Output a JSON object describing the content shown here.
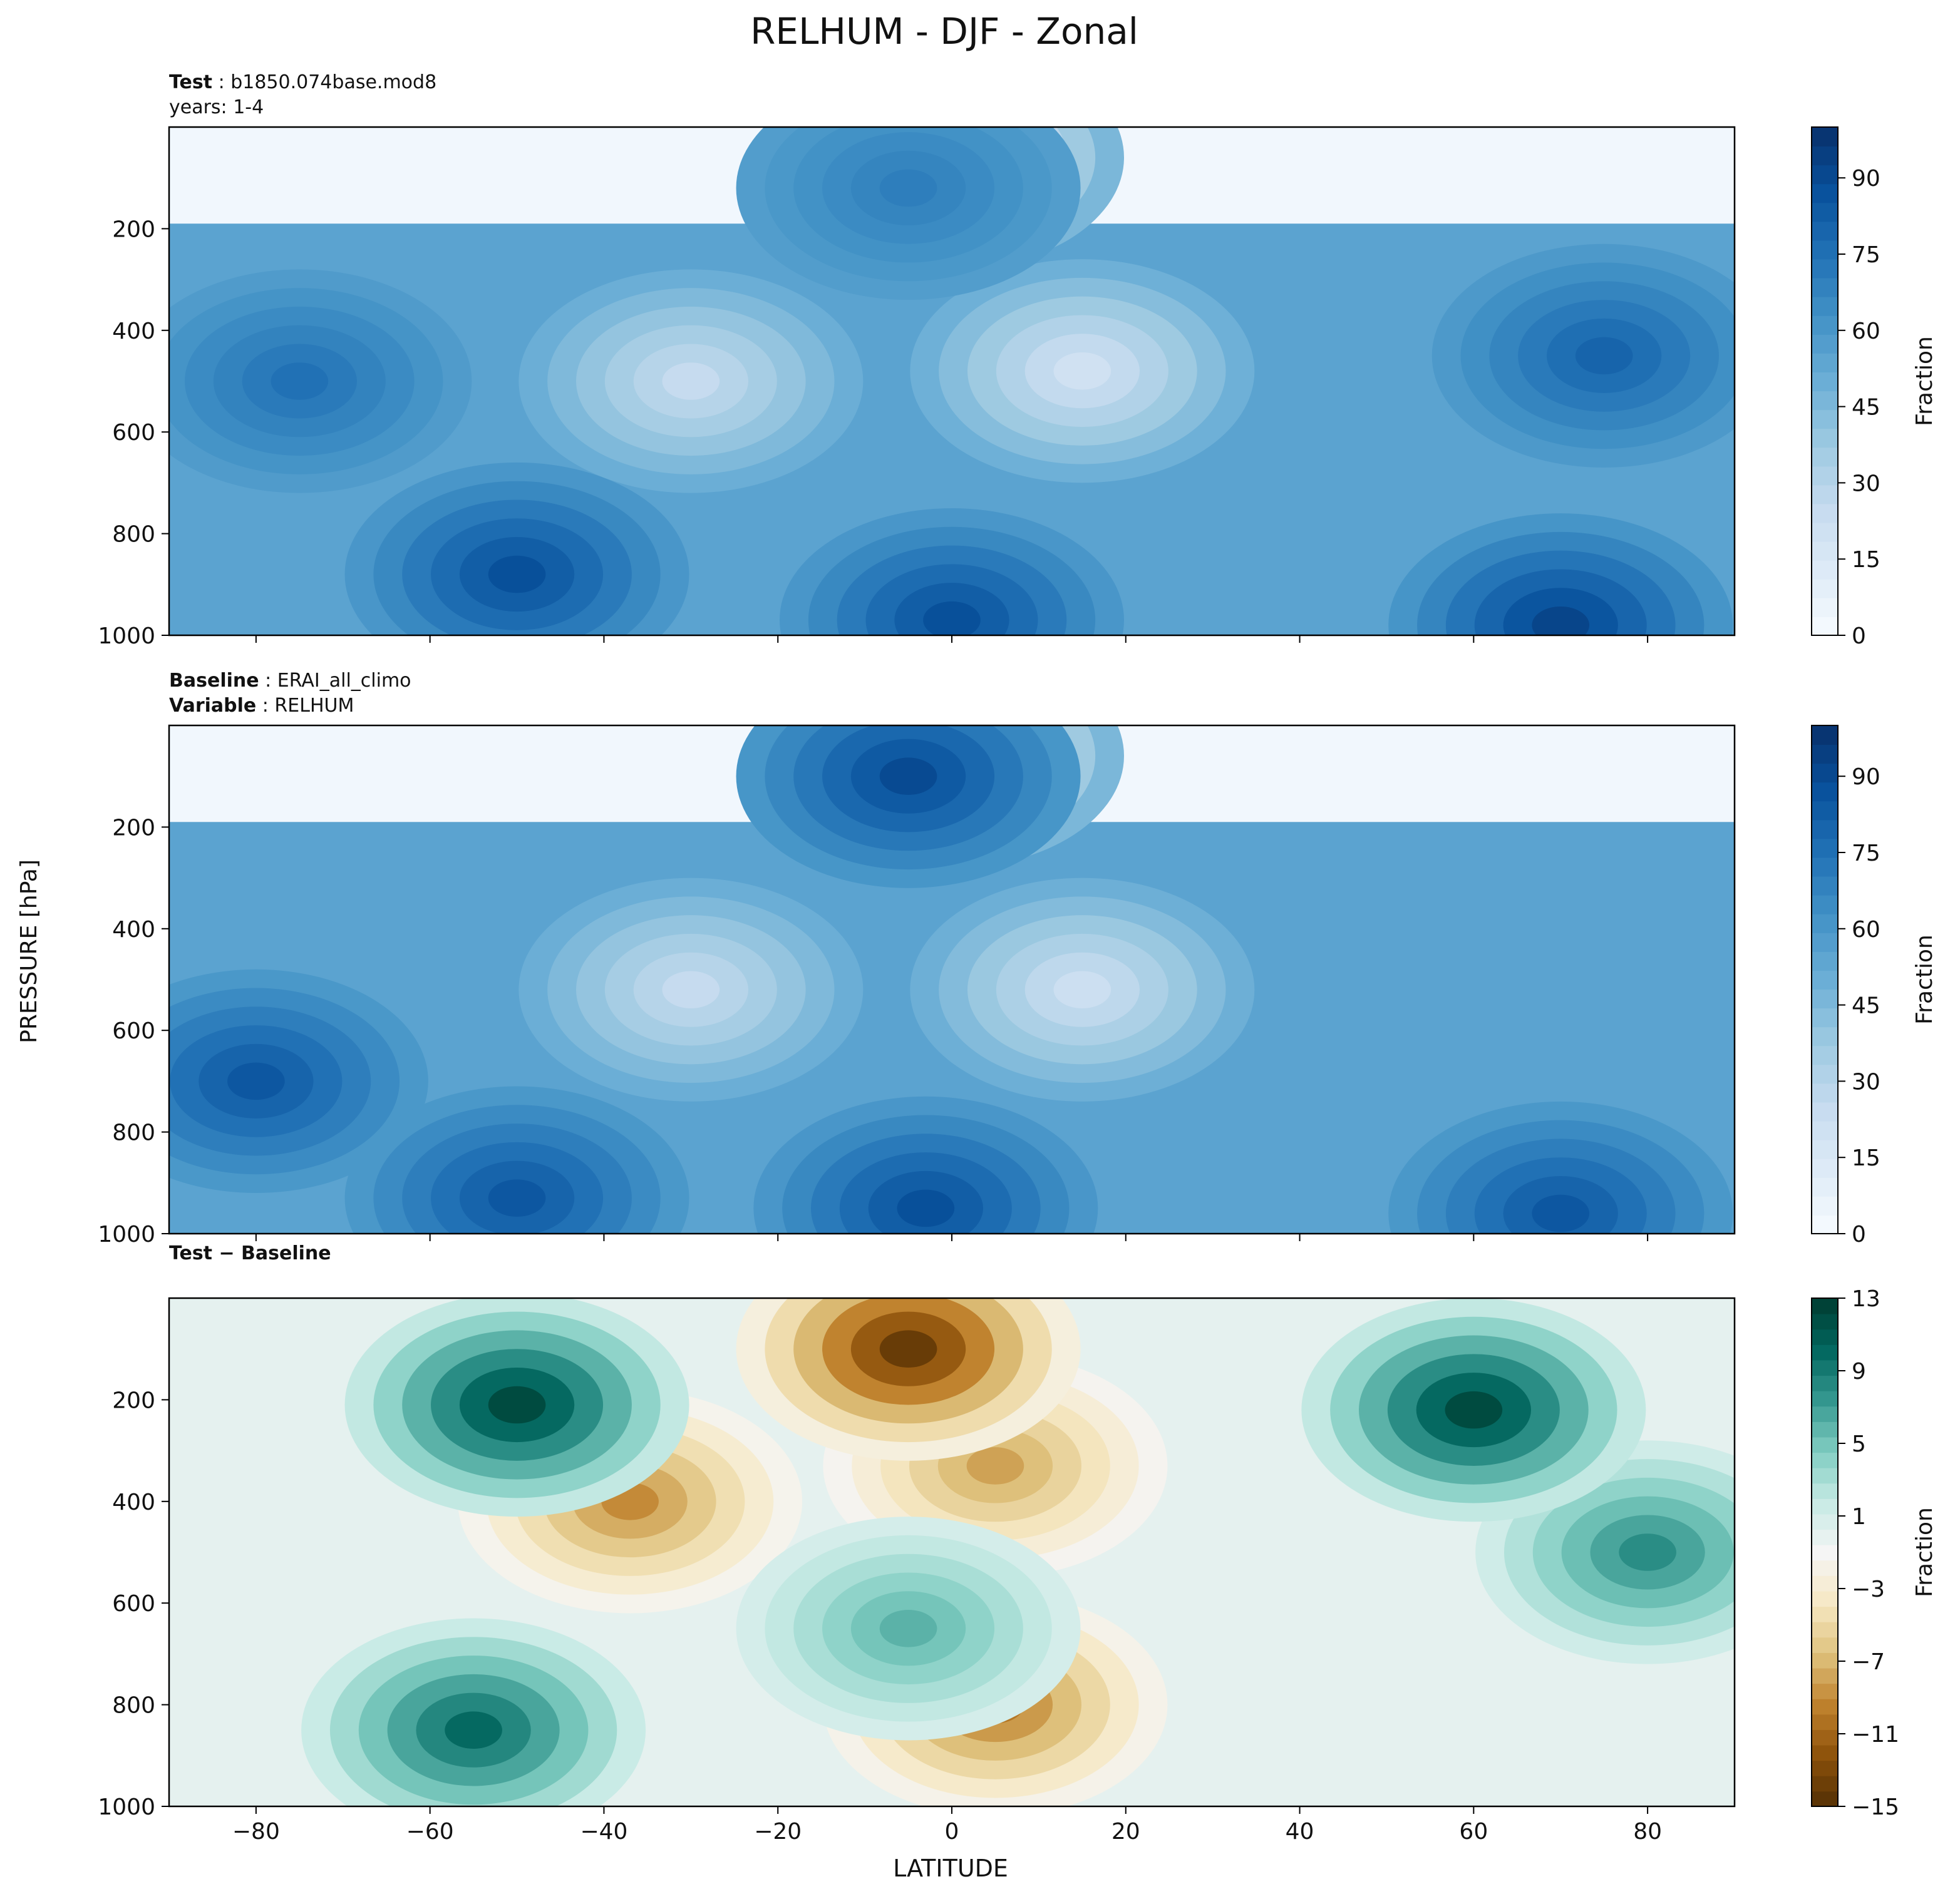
{
  "figure": {
    "title": "RELHUM - DJF - Zonal",
    "xlabel": "LATITUDE",
    "ylabel": "PRESSURE [hPa]"
  },
  "chart_data": [
    {
      "type": "heatmap",
      "header": [
        {
          "bold": "Test",
          "text": "b1850.074base.mod8"
        },
        {
          "bold": "",
          "text": "years: 1-4"
        }
      ],
      "xlim": [
        -90,
        90
      ],
      "ylim": [
        1000,
        0
      ],
      "y_inverted": true,
      "yticks": [
        "200",
        "400",
        "600",
        "800",
        "1000"
      ],
      "colorbar": {
        "label": "Fraction",
        "ticks": [
          "0",
          "15",
          "30",
          "45",
          "60",
          "75",
          "90"
        ],
        "range": [
          0,
          100
        ],
        "colormap": "Blues",
        "colors": [
          "#f7fbff",
          "#deebf7",
          "#c6dbef",
          "#9ecae1",
          "#6baed6",
          "#4292c6",
          "#2171b5",
          "#08519c",
          "#08306b"
        ]
      },
      "features": [
        {
          "lat": 0,
          "p": 60,
          "value": 2
        },
        {
          "lat": -30,
          "p": 500,
          "value": 25
        },
        {
          "lat": 15,
          "p": 480,
          "value": 20
        },
        {
          "lat": -5,
          "p": 120,
          "value": 70
        },
        {
          "lat": -75,
          "p": 500,
          "value": 75
        },
        {
          "lat": 75,
          "p": 450,
          "value": 80
        },
        {
          "lat": -50,
          "p": 880,
          "value": 88
        },
        {
          "lat": 0,
          "p": 970,
          "value": 88
        },
        {
          "lat": 70,
          "p": 980,
          "value": 92
        }
      ]
    },
    {
      "type": "heatmap",
      "header": [
        {
          "bold": "Baseline",
          "text": "ERAI_all_climo"
        },
        {
          "bold": "Variable",
          "text": "RELHUM"
        }
      ],
      "xlim": [
        -90,
        90
      ],
      "ylim": [
        1000,
        0
      ],
      "y_inverted": true,
      "yticks": [
        "200",
        "400",
        "600",
        "800",
        "1000"
      ],
      "colorbar": {
        "label": "Fraction",
        "ticks": [
          "0",
          "15",
          "30",
          "45",
          "60",
          "75",
          "90"
        ],
        "range": [
          0,
          100
        ],
        "colormap": "Blues",
        "colors": [
          "#f7fbff",
          "#deebf7",
          "#c6dbef",
          "#9ecae1",
          "#6baed6",
          "#4292c6",
          "#2171b5",
          "#08519c",
          "#08306b"
        ]
      },
      "features": [
        {
          "lat": 0,
          "p": 60,
          "value": 2
        },
        {
          "lat": -30,
          "p": 520,
          "value": 25
        },
        {
          "lat": 15,
          "p": 520,
          "value": 22
        },
        {
          "lat": -5,
          "p": 100,
          "value": 90
        },
        {
          "lat": -80,
          "p": 700,
          "value": 85
        },
        {
          "lat": -50,
          "p": 930,
          "value": 85
        },
        {
          "lat": -3,
          "p": 950,
          "value": 88
        },
        {
          "lat": 70,
          "p": 960,
          "value": 85
        }
      ]
    },
    {
      "type": "heatmap",
      "header": [
        {
          "bold": "Test − Baseline",
          "text": ""
        }
      ],
      "xlim": [
        -90,
        90
      ],
      "ylim": [
        1000,
        0
      ],
      "y_inverted": true,
      "yticks": [
        "200",
        "400",
        "600",
        "800",
        "1000"
      ],
      "colorbar": {
        "label": "Fraction",
        "ticks": [
          "−15",
          "−11",
          "−7",
          "−3",
          "1",
          "5",
          "9",
          "13"
        ],
        "range": [
          -15,
          13
        ],
        "colormap": "BrBG",
        "colors": [
          "#543005",
          "#8c510a",
          "#bf812d",
          "#dfc27d",
          "#f6e8c3",
          "#f5f5f5",
          "#c7eae5",
          "#80cdc1",
          "#35978f",
          "#01665e",
          "#003c30"
        ]
      },
      "features": [
        {
          "lat": -37,
          "p": 400,
          "value": -9
        },
        {
          "lat": 5,
          "p": 330,
          "value": -8
        },
        {
          "lat": 5,
          "p": 800,
          "value": -10
        },
        {
          "lat": -5,
          "p": 650,
          "value": 6
        },
        {
          "lat": -55,
          "p": 850,
          "value": 10
        },
        {
          "lat": 80,
          "p": 500,
          "value": 8
        },
        {
          "lat": -50,
          "p": 210,
          "value": 12
        },
        {
          "lat": 60,
          "p": 220,
          "value": 12
        },
        {
          "lat": -5,
          "p": 100,
          "value": -14
        }
      ]
    }
  ],
  "xticks": [
    "−80",
    "−60",
    "−40",
    "−20",
    "0",
    "20",
    "40",
    "60",
    "80"
  ]
}
